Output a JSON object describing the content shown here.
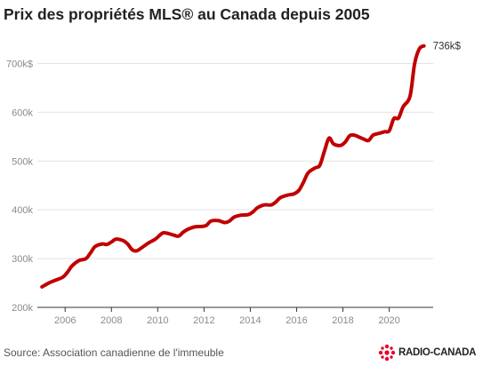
{
  "page": {
    "title": "Prix des propriétés MLS® au Canada depuis 2005",
    "source": "Source: Association canadienne de l'immeuble",
    "logo_text": "RADIO-CANADA"
  },
  "colors": {
    "line": "#c00000",
    "grid": "#e3e3e3",
    "axis": "#333333",
    "logo": "#e4002b"
  },
  "chart_data": {
    "type": "line",
    "title": "Prix des propriétés MLS® au Canada depuis 2005",
    "xlabel": "",
    "ylabel": "",
    "x_ticks": [
      2006,
      2008,
      2010,
      2012,
      2014,
      2016,
      2018,
      2020
    ],
    "x_tick_labels": [
      "2006",
      "2008",
      "2010",
      "2012",
      "2014",
      "2016",
      "2018",
      "2020"
    ],
    "y_ticks": [
      200,
      300,
      400,
      500,
      600,
      700
    ],
    "y_tick_labels": [
      "200k",
      "300k",
      "400k",
      "500k",
      "600k",
      "700k$"
    ],
    "xlim": [
      2004.8,
      2021.9
    ],
    "ylim": [
      200,
      750
    ],
    "grid": true,
    "end_label": "736k$",
    "series": [
      {
        "values": [
          [
            2005.0,
            242
          ],
          [
            2005.3,
            250
          ],
          [
            2005.6,
            256
          ],
          [
            2005.9,
            262
          ],
          [
            2006.1,
            272
          ],
          [
            2006.3,
            285
          ],
          [
            2006.6,
            296
          ],
          [
            2006.9,
            300
          ],
          [
            2007.1,
            312
          ],
          [
            2007.3,
            325
          ],
          [
            2007.6,
            330
          ],
          [
            2007.8,
            329
          ],
          [
            2008.0,
            334
          ],
          [
            2008.2,
            340
          ],
          [
            2008.5,
            337
          ],
          [
            2008.7,
            330
          ],
          [
            2008.9,
            318
          ],
          [
            2009.1,
            316
          ],
          [
            2009.3,
            322
          ],
          [
            2009.6,
            332
          ],
          [
            2009.9,
            340
          ],
          [
            2010.2,
            352
          ],
          [
            2010.4,
            352
          ],
          [
            2010.7,
            348
          ],
          [
            2010.9,
            346
          ],
          [
            2011.1,
            354
          ],
          [
            2011.3,
            360
          ],
          [
            2011.6,
            365
          ],
          [
            2011.9,
            366
          ],
          [
            2012.1,
            368
          ],
          [
            2012.3,
            377
          ],
          [
            2012.6,
            378
          ],
          [
            2012.9,
            374
          ],
          [
            2013.1,
            377
          ],
          [
            2013.3,
            385
          ],
          [
            2013.6,
            389
          ],
          [
            2013.9,
            390
          ],
          [
            2014.1,
            395
          ],
          [
            2014.3,
            404
          ],
          [
            2014.6,
            410
          ],
          [
            2014.9,
            410
          ],
          [
            2015.1,
            416
          ],
          [
            2015.3,
            425
          ],
          [
            2015.6,
            430
          ],
          [
            2015.9,
            433
          ],
          [
            2016.1,
            440
          ],
          [
            2016.3,
            457
          ],
          [
            2016.5,
            476
          ],
          [
            2016.8,
            486
          ],
          [
            2017.0,
            491
          ],
          [
            2017.2,
            520
          ],
          [
            2017.4,
            547
          ],
          [
            2017.6,
            535
          ],
          [
            2017.9,
            532
          ],
          [
            2018.1,
            539
          ],
          [
            2018.3,
            552
          ],
          [
            2018.5,
            553
          ],
          [
            2018.7,
            549
          ],
          [
            2018.9,
            545
          ],
          [
            2019.1,
            542
          ],
          [
            2019.3,
            553
          ],
          [
            2019.5,
            556
          ],
          [
            2019.8,
            560
          ],
          [
            2020.0,
            562
          ],
          [
            2020.2,
            587
          ],
          [
            2020.4,
            588
          ],
          [
            2020.6,
            611
          ],
          [
            2020.9,
            633
          ],
          [
            2021.1,
            700
          ],
          [
            2021.3,
            730
          ],
          [
            2021.5,
            736
          ]
        ]
      }
    ]
  }
}
